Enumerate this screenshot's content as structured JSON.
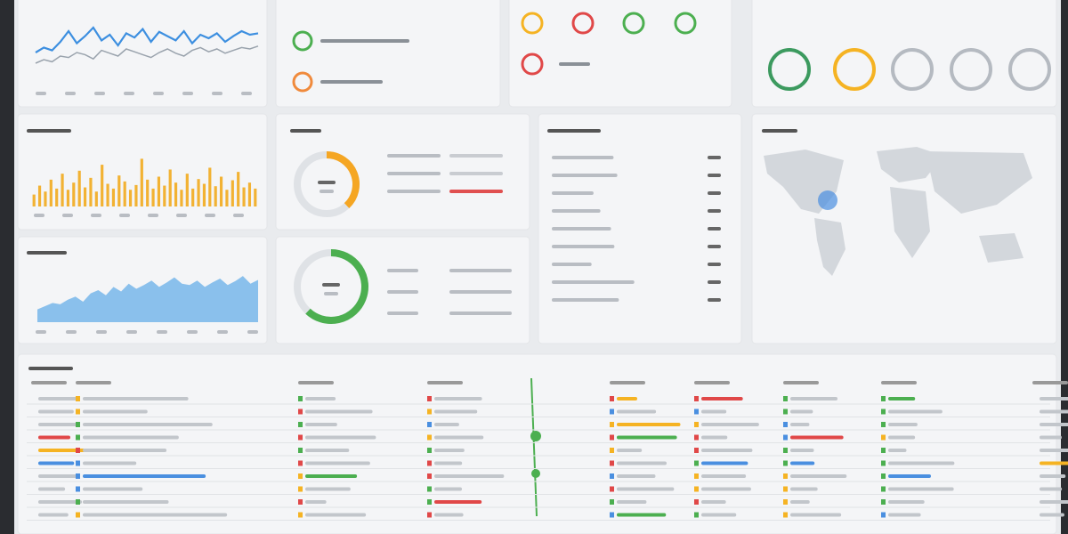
{
  "chart_data": [
    {
      "type": "line",
      "ylim": [
        0,
        100
      ],
      "series": [
        {
          "color": "#3d8fe0",
          "values": [
            45,
            52,
            48,
            60,
            75,
            58,
            68,
            80,
            62,
            70,
            55,
            72,
            66,
            78,
            60,
            74,
            68,
            62,
            75,
            58,
            70,
            65,
            72,
            60,
            68,
            75,
            70,
            72
          ]
        },
        {
          "color": "#9aa3ad",
          "values": [
            30,
            35,
            32,
            40,
            38,
            45,
            42,
            36,
            48,
            44,
            40,
            50,
            46,
            42,
            38,
            45,
            50,
            44,
            40,
            48,
            52,
            46,
            50,
            44,
            48,
            52,
            50,
            54
          ]
        }
      ]
    },
    {
      "type": "bar",
      "ylim": [
        0,
        100
      ],
      "color": "#f2b233",
      "values": [
        20,
        35,
        25,
        45,
        30,
        55,
        28,
        40,
        60,
        32,
        48,
        25,
        70,
        38,
        30,
        52,
        42,
        28,
        36,
        80,
        45,
        30,
        50,
        35,
        62,
        40,
        28,
        55,
        30,
        46,
        38,
        65,
        34,
        50,
        28,
        44,
        58,
        32,
        40,
        30
      ]
    },
    {
      "type": "area",
      "ylim": [
        0,
        100
      ],
      "color": "#6fb3e8",
      "values": [
        20,
        25,
        30,
        28,
        35,
        40,
        32,
        45,
        50,
        42,
        55,
        48,
        60,
        52,
        58,
        65,
        55,
        62,
        70,
        60,
        58,
        65,
        55,
        62,
        68,
        58,
        64,
        72,
        60,
        66
      ]
    },
    {
      "type": "donut",
      "ylim": [
        0,
        100
      ],
      "color": "#f5a623",
      "values": [
        38
      ]
    },
    {
      "type": "donut",
      "ylim": [
        0,
        100
      ],
      "color": "#4caf50",
      "values": [
        62
      ]
    }
  ]
}
